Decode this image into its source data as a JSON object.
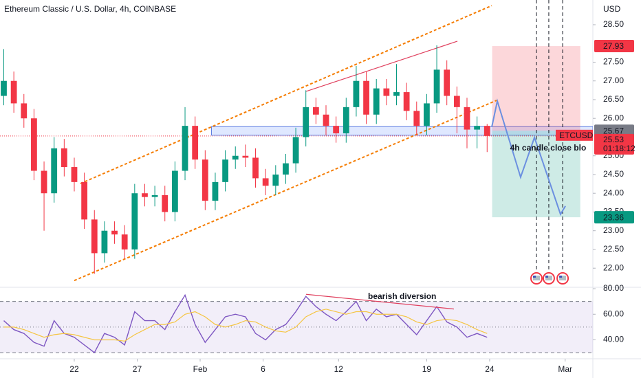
{
  "chart_data": [
    {
      "type": "candlestick",
      "title": "Ethereum Classic / U.S. Dollar, 4h, COINBASE",
      "currency": "USD",
      "x": [
        16.4,
        17.2,
        18.0,
        18.8,
        19.6,
        20.4,
        21.2,
        22.0,
        22.8,
        23.6,
        24.4,
        25.2,
        26.0,
        26.8,
        27.6,
        28.4,
        29.2,
        30.0,
        30.8,
        31.6,
        32.4,
        33.2,
        34.0,
        34.8,
        35.6,
        36.4,
        37.2,
        38.0,
        38.8,
        39.6,
        40.4,
        41.2,
        42.0,
        42.8,
        43.6,
        44.4,
        45.2,
        46.0,
        46.8,
        47.6,
        48.4,
        49.2,
        50.0,
        50.8,
        51.6,
        52.4,
        53.2,
        54.0,
        54.8
      ],
      "open": [
        26.6,
        27.0,
        26.4,
        26.0,
        24.6,
        24.0,
        25.2,
        24.7,
        24.3,
        23.3,
        22.4,
        23.0,
        22.9,
        22.5,
        24.0,
        23.9,
        23.95,
        23.5,
        24.6,
        25.8,
        24.9,
        23.8,
        24.3,
        24.9,
        25.0,
        24.95,
        24.4,
        24.2,
        24.5,
        24.8,
        25.5,
        26.3,
        26.1,
        25.8,
        25.6,
        26.3,
        27.0,
        26.1,
        26.8,
        26.6,
        26.7,
        26.2,
        25.8,
        26.4,
        27.3,
        26.6,
        26.3,
        25.7,
        25.8
      ],
      "high": [
        27.85,
        27.25,
        26.65,
        26.25,
        24.85,
        25.5,
        25.45,
        24.95,
        24.55,
        23.55,
        23.25,
        23.25,
        23.15,
        24.25,
        24.25,
        24.2,
        24.2,
        24.85,
        26.3,
        26.05,
        25.15,
        24.55,
        25.15,
        25.25,
        25.3,
        25.2,
        24.65,
        24.75,
        25.05,
        25.75,
        26.75,
        26.55,
        26.35,
        26.05,
        26.55,
        27.4,
        27.25,
        27.05,
        27.05,
        27.45,
        26.95,
        26.45,
        26.65,
        27.95,
        27.55,
        26.85,
        26.55,
        26.05,
        25.85
      ],
      "low": [
        26.35,
        26.15,
        25.75,
        24.35,
        23.0,
        23.75,
        24.45,
        24.05,
        23.05,
        21.85,
        22.15,
        22.65,
        22.25,
        22.25,
        23.65,
        23.65,
        23.25,
        23.25,
        24.35,
        24.65,
        23.55,
        23.55,
        24.05,
        24.65,
        24.7,
        24.15,
        23.95,
        23.95,
        24.25,
        24.55,
        25.25,
        25.85,
        25.55,
        25.35,
        25.35,
        26.05,
        25.85,
        25.85,
        26.35,
        26.35,
        25.95,
        25.55,
        25.55,
        26.15,
        26.35,
        25.6,
        25.2,
        25.2,
        25.1
      ],
      "close": [
        27.0,
        26.4,
        26.0,
        24.6,
        24.0,
        25.2,
        24.7,
        24.3,
        23.3,
        22.4,
        23.0,
        22.9,
        22.5,
        24.0,
        23.9,
        23.95,
        23.5,
        24.6,
        25.8,
        24.9,
        23.8,
        24.3,
        24.9,
        25.0,
        24.95,
        24.4,
        24.2,
        24.5,
        24.8,
        25.5,
        26.3,
        26.1,
        25.8,
        25.6,
        26.3,
        27.0,
        26.1,
        26.8,
        26.6,
        26.7,
        26.2,
        25.8,
        26.4,
        27.3,
        26.6,
        26.3,
        25.7,
        25.8,
        25.53
      ],
      "up_color": "#089981",
      "down_color": "#f23645",
      "xlim": [
        16.1,
        63.2
      ],
      "ylim": [
        21.49,
        29.16
      ],
      "yticks": [
        {
          "value": 28.5,
          "label": "28.50"
        },
        {
          "value": 27.5,
          "label": "27.50"
        },
        {
          "value": 27,
          "label": "27.00"
        },
        {
          "value": 26.5,
          "label": "26.50"
        },
        {
          "value": 26,
          "label": "26.00"
        },
        {
          "value": 25,
          "label": "25.00"
        },
        {
          "value": 24.5,
          "label": "24.50"
        },
        {
          "value": 24,
          "label": "24.00"
        },
        {
          "value": 23.5,
          "label": "23.50"
        },
        {
          "value": 23,
          "label": "23.00"
        },
        {
          "value": 22.5,
          "label": "22.50"
        },
        {
          "value": 22,
          "label": "22.00"
        }
      ],
      "channel": [
        [
          [
            22.49,
            24.26
          ],
          [
            55.17,
            29.01
          ]
        ],
        [
          [
            22.0,
            21.67
          ],
          [
            55.55,
            26.48
          ]
        ]
      ],
      "channel_color": "#f57c00",
      "resistance": [
        [
          40.42,
          26.72
        ],
        [
          52.44,
          28.06
        ]
      ],
      "resistance_color": "#e0405e",
      "zone": {
        "x": [
          32.9,
          63.2
        ],
        "y": [
          25.55,
          25.78
        ]
      },
      "position": {
        "x": [
          55.2,
          62.2
        ],
        "stop": {
          "value": 27.93,
          "label": "27.93"
        },
        "entry": {
          "value": 25.67,
          "label": "25.67"
        },
        "target": {
          "value": 23.36,
          "label": "23.36"
        }
      },
      "last_price": {
        "value": 25.53,
        "label": "25.53",
        "symbol": "ETCUSD",
        "countdown": "01:18:12"
      },
      "projection": [
        [
          55.17,
          25.77
        ],
        [
          55.61,
          26.46
        ],
        [
          57.46,
          24.43
        ],
        [
          58.56,
          25.49
        ],
        [
          60.63,
          23.44
        ],
        [
          61.02,
          23.66
        ]
      ],
      "projection_color": "#6b8fe0",
      "events": [
        58.72,
        59.7,
        60.8
      ],
      "note": "4h candle close blo"
    },
    {
      "type": "line",
      "x": [
        16.4,
        17.2,
        18.0,
        18.8,
        19.6,
        20.4,
        21.2,
        22.0,
        22.8,
        23.6,
        24.4,
        25.2,
        26.0,
        26.8,
        27.6,
        28.4,
        29.2,
        30.0,
        30.8,
        31.6,
        32.4,
        33.2,
        34.0,
        34.8,
        35.6,
        36.4,
        37.2,
        38.0,
        38.8,
        39.6,
        40.4,
        41.2,
        42.0,
        42.8,
        43.6,
        44.4,
        45.2,
        46.0,
        46.8,
        47.6,
        48.4,
        49.2,
        50.0,
        50.8,
        51.6,
        52.4,
        53.2,
        54.0,
        54.8
      ],
      "series": [
        {
          "color": "#7e57c2",
          "values": [
            55,
            48,
            45,
            38,
            35,
            55,
            45,
            42,
            36,
            30,
            45,
            42,
            36,
            62,
            55,
            55,
            48,
            62,
            75,
            52,
            38,
            48,
            58,
            60,
            58,
            45,
            40,
            48,
            52,
            62,
            74,
            66,
            60,
            55,
            62,
            70,
            55,
            64,
            58,
            60,
            52,
            44,
            55,
            66,
            54,
            50,
            42,
            45,
            42
          ]
        },
        {
          "color": "#f5c542",
          "values": [
            50,
            50,
            48,
            45,
            42,
            44,
            45,
            44,
            42,
            40,
            40,
            40,
            39,
            44,
            48,
            52,
            52,
            54,
            60,
            62,
            58,
            52,
            50,
            52,
            55,
            54,
            50,
            47,
            46,
            50,
            58,
            62,
            64,
            62,
            60,
            62,
            62,
            60,
            60,
            60,
            58,
            54,
            52,
            55,
            56,
            55,
            52,
            48,
            45
          ]
        }
      ],
      "bands": [
        30,
        50,
        70
      ],
      "xlim": [
        16.1,
        63.2
      ],
      "ylim": [
        25.2,
        81.1
      ],
      "yticks": [
        {
          "value": 80,
          "label": "80.00"
        },
        {
          "value": 60,
          "label": "60.00"
        },
        {
          "value": 40,
          "label": "40.00"
        }
      ],
      "xticks": [
        {
          "value": 22,
          "label": "22"
        },
        {
          "value": 27,
          "label": "27"
        },
        {
          "value": 32,
          "label": "Feb"
        },
        {
          "value": 37,
          "label": "6"
        },
        {
          "value": 43,
          "label": "12"
        },
        {
          "value": 50,
          "label": "19"
        },
        {
          "value": 55,
          "label": "24"
        },
        {
          "value": 61,
          "label": "Mar"
        }
      ],
      "divergence": [
        [
          40.42,
          75.6
        ],
        [
          52.16,
          64.1
        ]
      ],
      "divergence_color": "#e0405e",
      "annotation": "bearish diversion"
    }
  ]
}
